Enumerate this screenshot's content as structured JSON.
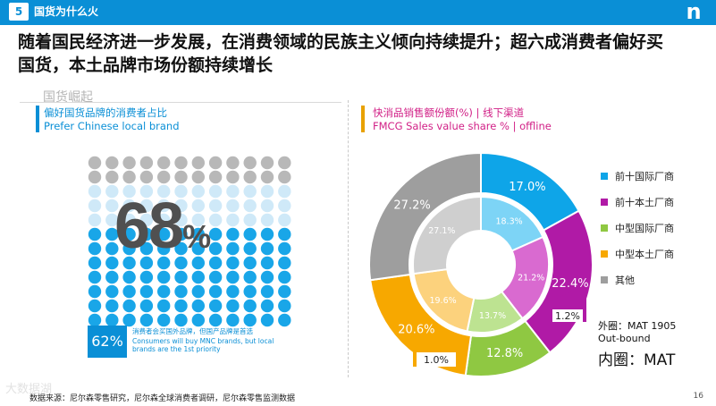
{
  "header": {
    "section_number": "5",
    "section_title": "国货为什么火",
    "logo_letter": "n"
  },
  "headline": "随着国民经济进一步发展，在消费领域的民族主义倾向持续提升；超六成消费者偏好买国货，本土品牌市场份额持续增长",
  "section_tag": "国货崛起",
  "left_panel": {
    "title_cn": "偏好国货品牌的消费者占比",
    "title_en": "Prefer Chinese local brand",
    "big_value": "68",
    "big_symbol": "%",
    "highlight_pct": "62%",
    "note_cn": "消费者会买国外品牌，但国产品牌是首选",
    "note_en": "Consumers will buy MNC brands, but local brands are the 1st priority",
    "dot_colors": {
      "light": "#cfe9f8",
      "blue": "#19a6e8",
      "grey": "#b8b8b8"
    },
    "dot_levels": {
      "grey_rows": 2,
      "light_rows": 3,
      "blue_rows": 7
    }
  },
  "right_panel": {
    "title_cn": "快消品销售额份额(%) | 线下渠道",
    "title_en": "FMCG Sales value share % | offline",
    "annotation_outer_1": "外圈：MAT 1905",
    "annotation_outer_2": "Out-bound",
    "annotation_inner": "内圈：MAT",
    "arrow_right": "1.2%",
    "arrow_left": "1.0%"
  },
  "chart_data": {
    "type": "pie",
    "series": [
      {
        "name": "外圈：MAT 1905",
        "values": [
          17.0,
          22.4,
          12.8,
          20.6,
          27.2
        ],
        "labels": [
          "17.0%",
          "22.4%",
          "12.8%",
          "20.6%",
          "27.2%"
        ]
      },
      {
        "name": "内圈：MAT",
        "values": [
          18.3,
          21.2,
          13.7,
          19.6,
          27.1
        ],
        "labels": [
          "18.3%",
          "21.2%",
          "13.7%",
          "19.6%",
          "27.1%"
        ]
      }
    ],
    "categories": [
      "前十国际厂商",
      "前十本土厂商",
      "中型国际厂商",
      "中型本土厂商",
      "其他"
    ],
    "colors": [
      "#0ea5e8",
      "#b01aa6",
      "#8fc842",
      "#f7a800",
      "#9e9e9e"
    ],
    "inner_colors": [
      "#7dd4f6",
      "#d96ad0",
      "#bde391",
      "#fcd27d",
      "#cfcfcf"
    ]
  },
  "footer": {
    "source": "数据来源：尼尔森零售研究，尼尔森全球消费者调研，尼尔森零售监测数据",
    "page_number": "16",
    "watermark": "大数据湖"
  }
}
